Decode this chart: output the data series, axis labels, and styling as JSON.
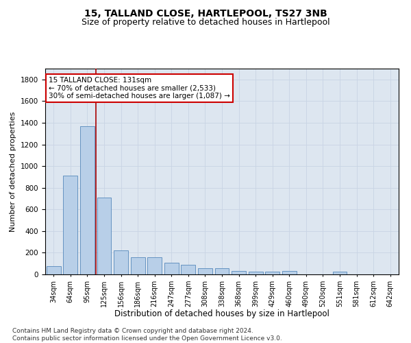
{
  "title": "15, TALLAND CLOSE, HARTLEPOOL, TS27 3NB",
  "subtitle": "Size of property relative to detached houses in Hartlepool",
  "xlabel": "Distribution of detached houses by size in Hartlepool",
  "ylabel": "Number of detached properties",
  "categories": [
    "34sqm",
    "64sqm",
    "95sqm",
    "125sqm",
    "156sqm",
    "186sqm",
    "216sqm",
    "247sqm",
    "277sqm",
    "308sqm",
    "338sqm",
    "368sqm",
    "399sqm",
    "429sqm",
    "460sqm",
    "490sqm",
    "520sqm",
    "551sqm",
    "581sqm",
    "612sqm",
    "642sqm"
  ],
  "values": [
    75,
    910,
    1370,
    710,
    220,
    160,
    160,
    105,
    90,
    55,
    55,
    30,
    25,
    25,
    30,
    0,
    0,
    25,
    0,
    0,
    0
  ],
  "bar_color": "#b8cfe8",
  "bar_edge_color": "#5588bb",
  "vline_color": "#aa0000",
  "annotation_text": "15 TALLAND CLOSE: 131sqm\n← 70% of detached houses are smaller (2,533)\n30% of semi-detached houses are larger (1,087) →",
  "annotation_box_color": "#ffffff",
  "annotation_box_edge": "#cc0000",
  "ylim": [
    0,
    1900
  ],
  "yticks": [
    0,
    200,
    400,
    600,
    800,
    1000,
    1200,
    1400,
    1600,
    1800
  ],
  "grid_color": "#c8d4e4",
  "background_color": "#dde6f0",
  "footer": "Contains HM Land Registry data © Crown copyright and database right 2024.\nContains public sector information licensed under the Open Government Licence v3.0.",
  "title_fontsize": 10,
  "subtitle_fontsize": 9,
  "xlabel_fontsize": 8.5,
  "ylabel_fontsize": 8,
  "annotation_fontsize": 7.5,
  "footer_fontsize": 6.5,
  "vline_pos": 2.5
}
